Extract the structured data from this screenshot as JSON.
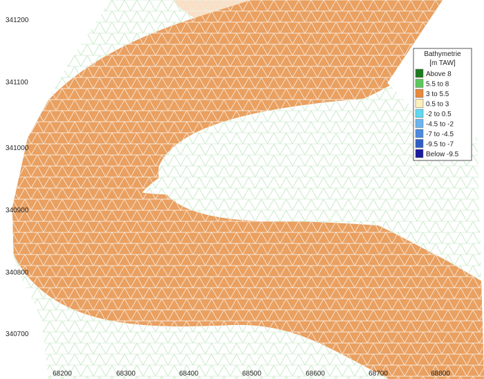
{
  "axes": {
    "y_labels": [
      "341200",
      "341100",
      "341000",
      "340900",
      "340800",
      "340700"
    ],
    "x_labels": [
      "68200",
      "68300",
      "68400",
      "68500",
      "68600",
      "68700",
      "68800"
    ]
  },
  "legend": {
    "title": "Bathymetrie",
    "unit": "[m TAW]",
    "items": [
      {
        "label": "Above 8",
        "color": "#1f7a1f"
      },
      {
        "label": "5.5 to 8",
        "color": "#5cc85c"
      },
      {
        "label": "3 to 5.5",
        "color": "#e8883a"
      },
      {
        "label": "0.5 to 3",
        "color": "#fbf0bc"
      },
      {
        "label": "-2 to 0.5",
        "color": "#5fd8f2"
      },
      {
        "label": "-4.5 to -2",
        "color": "#6bb4ee"
      },
      {
        "label": "-7 to -4.5",
        "color": "#4a8ae0"
      },
      {
        "label": "-9.5 to -7",
        "color": "#2f5ec6"
      },
      {
        "label": "Below -9.5",
        "color": "#1a1a9e"
      }
    ]
  }
}
